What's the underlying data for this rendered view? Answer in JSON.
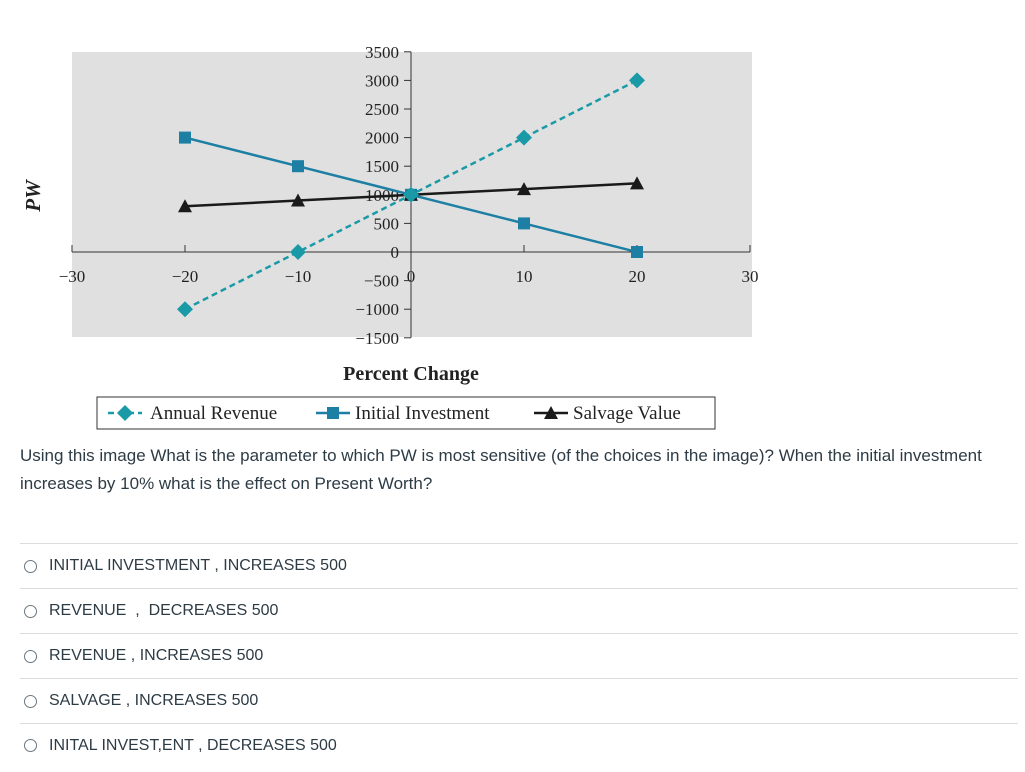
{
  "question": {
    "text": "Using this image  What is the parameter to which PW is most sensitive (of the choices in the image)?  When the initial investment increases by 10% what is the effect on Present Worth?"
  },
  "choices": [
    {
      "label": "INITIAL INVESTMENT , INCREASES 500"
    },
    {
      "label": "REVENUE  ,  DECREASES 500"
    },
    {
      "label": "REVENUE , INCREASES 500"
    },
    {
      "label": "SALVAGE , INCREASES 500"
    },
    {
      "label": "INITAL INVEST,ENT , DECREASES 500"
    }
  ],
  "chart_data": {
    "type": "line",
    "title": "",
    "xlabel": "Percent Change",
    "ylabel": "PW",
    "xlim": [
      -30,
      30
    ],
    "ylim": [
      -1500,
      3500
    ],
    "x_ticks": [
      -30,
      -20,
      -10,
      0,
      10,
      20,
      30
    ],
    "x_tick_labels": [
      "−30",
      "−20",
      "−10",
      "0",
      "10",
      "20",
      "30"
    ],
    "y_ticks": [
      -1500,
      -1000,
      -500,
      0,
      500,
      1000,
      1500,
      2000,
      2500,
      3000,
      3500
    ],
    "y_tick_labels": [
      "−1500",
      "−1000",
      "−500",
      "0",
      "500",
      "1000",
      "1500",
      "2000",
      "2500",
      "3000",
      "3500"
    ],
    "grid": false,
    "background": "#e0e0e0",
    "legend": "bottom",
    "series": [
      {
        "name": "Annual Revenue",
        "marker": "diamond",
        "dash": true,
        "color": "#1a9aa6",
        "x": [
          -20,
          -10,
          0,
          10,
          20
        ],
        "values": [
          -1000,
          0,
          1000,
          2000,
          3000
        ]
      },
      {
        "name": "Initial Investment",
        "marker": "square",
        "dash": false,
        "color": "#1c7fa3",
        "x": [
          -20,
          -10,
          0,
          10,
          20
        ],
        "values": [
          2000,
          1500,
          1000,
          500,
          0
        ]
      },
      {
        "name": "Salvage Value",
        "marker": "triangle",
        "dash": false,
        "color": "#1a1a1a",
        "x": [
          -20,
          -10,
          0,
          10,
          20
        ],
        "values": [
          800,
          900,
          1000,
          1100,
          1200
        ]
      }
    ]
  }
}
